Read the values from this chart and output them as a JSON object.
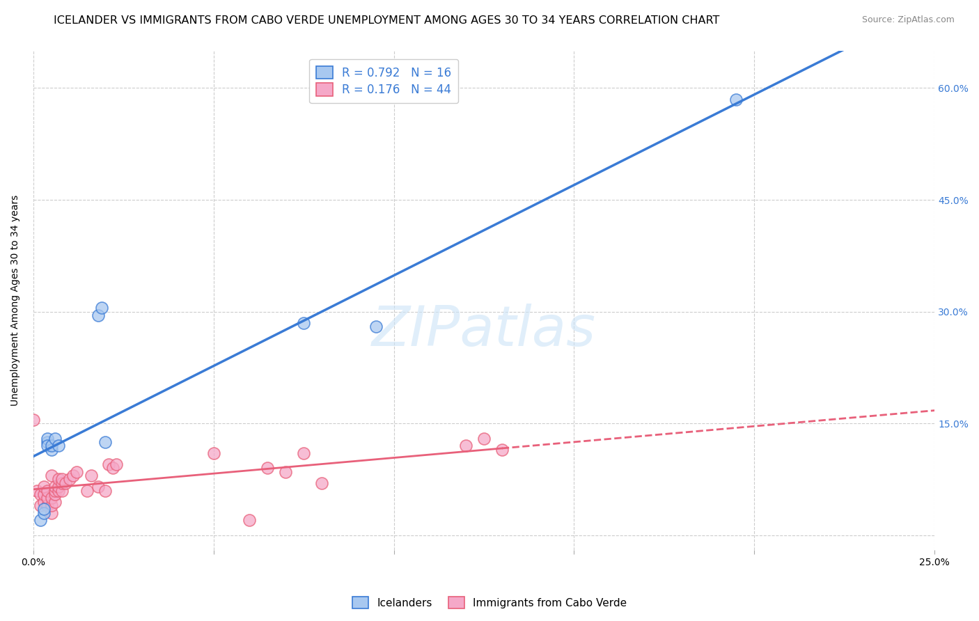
{
  "title": "ICELANDER VS IMMIGRANTS FROM CABO VERDE UNEMPLOYMENT AMONG AGES 30 TO 34 YEARS CORRELATION CHART",
  "source": "Source: ZipAtlas.com",
  "ylabel": "Unemployment Among Ages 30 to 34 years",
  "watermark": "ZIPatlas",
  "icelander_R": 0.792,
  "icelander_N": 16,
  "caboverde_R": 0.176,
  "caboverde_N": 44,
  "icelander_color": "#a8c8f0",
  "caboverde_color": "#f5a8c8",
  "icelander_line_color": "#3a7bd5",
  "caboverde_line_color": "#e8607a",
  "background_color": "#ffffff",
  "grid_color": "#cccccc",
  "x_min": 0.0,
  "x_max": 0.25,
  "y_min": -0.02,
  "y_max": 0.65,
  "x_ticks": [
    0.0,
    0.05,
    0.1,
    0.15,
    0.2,
    0.25
  ],
  "y_ticks": [
    0.0,
    0.15,
    0.3,
    0.45,
    0.6
  ],
  "legend_labels": [
    "Icelanders",
    "Immigrants from Cabo Verde"
  ],
  "title_fontsize": 11.5,
  "axis_label_fontsize": 10,
  "tick_fontsize": 10,
  "legend_fontsize": 12,
  "source_fontsize": 9,
  "icelander_x": [
    0.002,
    0.003,
    0.003,
    0.004,
    0.004,
    0.004,
    0.005,
    0.005,
    0.006,
    0.007,
    0.018,
    0.019,
    0.02,
    0.075,
    0.095,
    0.195
  ],
  "icelander_y": [
    0.02,
    0.03,
    0.035,
    0.125,
    0.13,
    0.12,
    0.115,
    0.12,
    0.13,
    0.12,
    0.295,
    0.305,
    0.125,
    0.285,
    0.28,
    0.585
  ],
  "caboverde_x": [
    0.0,
    0.001,
    0.002,
    0.002,
    0.003,
    0.003,
    0.003,
    0.004,
    0.004,
    0.004,
    0.005,
    0.005,
    0.005,
    0.005,
    0.006,
    0.006,
    0.006,
    0.006,
    0.007,
    0.007,
    0.007,
    0.008,
    0.008,
    0.008,
    0.009,
    0.01,
    0.011,
    0.012,
    0.015,
    0.016,
    0.018,
    0.02,
    0.021,
    0.022,
    0.023,
    0.05,
    0.06,
    0.065,
    0.07,
    0.075,
    0.08,
    0.12,
    0.125,
    0.13
  ],
  "caboverde_y": [
    0.155,
    0.06,
    0.04,
    0.055,
    0.045,
    0.055,
    0.065,
    0.04,
    0.05,
    0.06,
    0.03,
    0.04,
    0.05,
    0.08,
    0.045,
    0.055,
    0.06,
    0.065,
    0.06,
    0.065,
    0.075,
    0.06,
    0.07,
    0.075,
    0.07,
    0.075,
    0.08,
    0.085,
    0.06,
    0.08,
    0.065,
    0.06,
    0.095,
    0.09,
    0.095,
    0.11,
    0.02,
    0.09,
    0.085,
    0.11,
    0.07,
    0.12,
    0.13,
    0.115
  ]
}
